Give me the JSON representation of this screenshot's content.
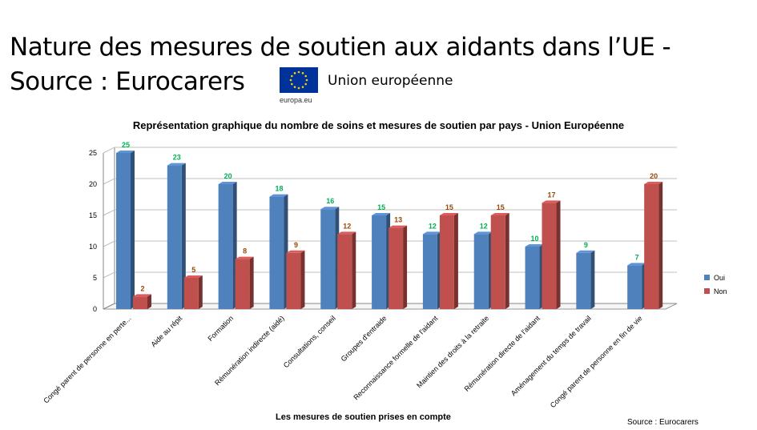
{
  "slide": {
    "title_line1": "Nature des mesures de soutien aux aidants dans l’UE -",
    "title_line2": "Source : Eurocarers"
  },
  "logo": {
    "name": "Union européenne",
    "caption": "europa.eu",
    "icon": "eu-flag-icon"
  },
  "footer": {
    "source": "Source : Eurocarers"
  },
  "colors": {
    "oui": "#4F81BD",
    "non": "#C0504D",
    "oui_label": "#00B050",
    "non_label": "#984807",
    "grid": "#BFBFBF"
  },
  "chart_data": {
    "type": "bar",
    "title": "Représentation graphique du nombre de soins et mesures de soutien par pays - Union Européenne",
    "xlabel": "Les mesures de soutien prises en compte",
    "ylabel": "",
    "ylim": [
      0,
      25
    ],
    "yticks": [
      0,
      5,
      10,
      15,
      20,
      25
    ],
    "grid": true,
    "legend_position": "right",
    "categories": [
      "Congé parent de personne en perte...",
      "Aide au répit",
      "Formation",
      "Rémunération indirecte (aidé)",
      "Consultations, conseil",
      "Groupes d'entraide",
      "Reconnaissance formelle de l'aidant",
      "Maintien des droits à la retraite",
      "Rémunération directe de l'aidant",
      "Aménagement du temps de travail",
      "Congé parent de personne en fin de vie"
    ],
    "series": [
      {
        "name": "Oui",
        "values": [
          25,
          23,
          20,
          18,
          16,
          15,
          12,
          12,
          10,
          9,
          7
        ]
      },
      {
        "name": "Non",
        "values": [
          2,
          5,
          8,
          9,
          12,
          13,
          15,
          15,
          17,
          null,
          20
        ]
      }
    ]
  }
}
